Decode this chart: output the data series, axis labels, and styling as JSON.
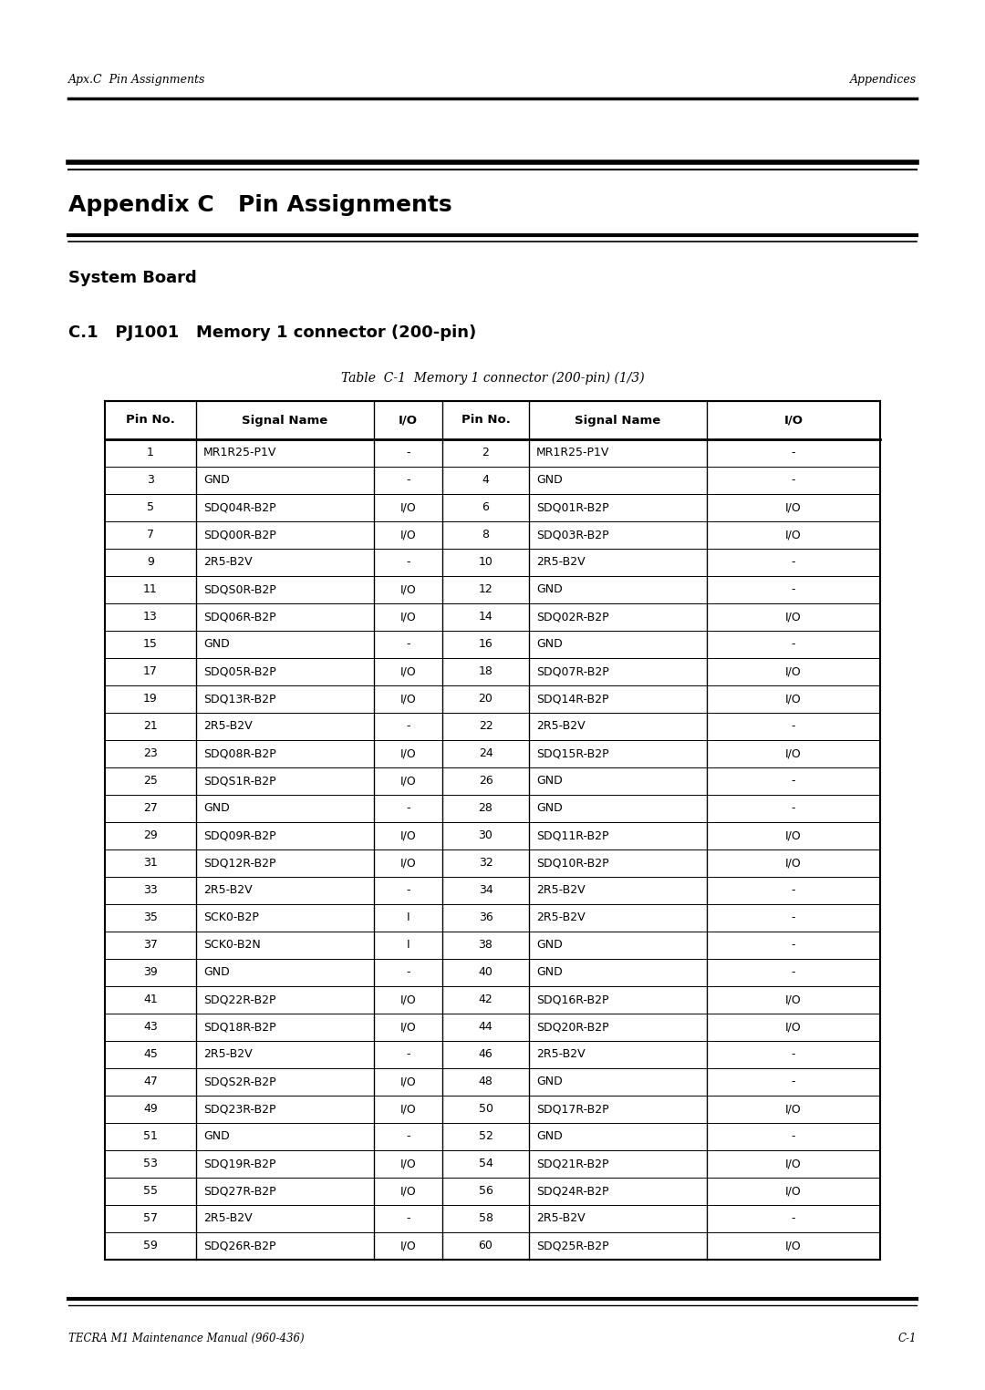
{
  "header_left": "Apx.C  Pin Assignments",
  "header_right": "Appendices",
  "title_line1": "Appendix C   Pin Assignments",
  "subtitle": "System Board",
  "section": "C.1   PJ1001   Memory 1 connector (200-pin)",
  "table_caption": "Table  C-1  Memory 1 connector (200-pin) (1/3)",
  "col_headers": [
    "Pin No.",
    "Signal Name",
    "I/O",
    "Pin No.",
    "Signal Name",
    "I/O"
  ],
  "rows": [
    [
      "1",
      "MR1R25-P1V",
      "-",
      "2",
      "MR1R25-P1V",
      "-"
    ],
    [
      "3",
      "GND",
      "-",
      "4",
      "GND",
      "-"
    ],
    [
      "5",
      "SDQ04R-B2P",
      "I/O",
      "6",
      "SDQ01R-B2P",
      "I/O"
    ],
    [
      "7",
      "SDQ00R-B2P",
      "I/O",
      "8",
      "SDQ03R-B2P",
      "I/O"
    ],
    [
      "9",
      "2R5-B2V",
      "-",
      "10",
      "2R5-B2V",
      "-"
    ],
    [
      "11",
      "SDQS0R-B2P",
      "I/O",
      "12",
      "GND",
      "-"
    ],
    [
      "13",
      "SDQ06R-B2P",
      "I/O",
      "14",
      "SDQ02R-B2P",
      "I/O"
    ],
    [
      "15",
      "GND",
      "-",
      "16",
      "GND",
      "-"
    ],
    [
      "17",
      "SDQ05R-B2P",
      "I/O",
      "18",
      "SDQ07R-B2P",
      "I/O"
    ],
    [
      "19",
      "SDQ13R-B2P",
      "I/O",
      "20",
      "SDQ14R-B2P",
      "I/O"
    ],
    [
      "21",
      "2R5-B2V",
      "-",
      "22",
      "2R5-B2V",
      "-"
    ],
    [
      "23",
      "SDQ08R-B2P",
      "I/O",
      "24",
      "SDQ15R-B2P",
      "I/O"
    ],
    [
      "25",
      "SDQS1R-B2P",
      "I/O",
      "26",
      "GND",
      "-"
    ],
    [
      "27",
      "GND",
      "-",
      "28",
      "GND",
      "-"
    ],
    [
      "29",
      "SDQ09R-B2P",
      "I/O",
      "30",
      "SDQ11R-B2P",
      "I/O"
    ],
    [
      "31",
      "SDQ12R-B2P",
      "I/O",
      "32",
      "SDQ10R-B2P",
      "I/O"
    ],
    [
      "33",
      "2R5-B2V",
      "-",
      "34",
      "2R5-B2V",
      "-"
    ],
    [
      "35",
      "SCK0-B2P",
      "I",
      "36",
      "2R5-B2V",
      "-"
    ],
    [
      "37",
      "SCK0-B2N",
      "I",
      "38",
      "GND",
      "-"
    ],
    [
      "39",
      "GND",
      "-",
      "40",
      "GND",
      "-"
    ],
    [
      "41",
      "SDQ22R-B2P",
      "I/O",
      "42",
      "SDQ16R-B2P",
      "I/O"
    ],
    [
      "43",
      "SDQ18R-B2P",
      "I/O",
      "44",
      "SDQ20R-B2P",
      "I/O"
    ],
    [
      "45",
      "2R5-B2V",
      "-",
      "46",
      "2R5-B2V",
      "-"
    ],
    [
      "47",
      "SDQS2R-B2P",
      "I/O",
      "48",
      "GND",
      "-"
    ],
    [
      "49",
      "SDQ23R-B2P",
      "I/O",
      "50",
      "SDQ17R-B2P",
      "I/O"
    ],
    [
      "51",
      "GND",
      "-",
      "52",
      "GND",
      "-"
    ],
    [
      "53",
      "SDQ19R-B2P",
      "I/O",
      "54",
      "SDQ21R-B2P",
      "I/O"
    ],
    [
      "55",
      "SDQ27R-B2P",
      "I/O",
      "56",
      "SDQ24R-B2P",
      "I/O"
    ],
    [
      "57",
      "2R5-B2V",
      "-",
      "58",
      "2R5-B2V",
      "-"
    ],
    [
      "59",
      "SDQ26R-B2P",
      "I/O",
      "60",
      "SDQ25R-B2P",
      "I/O"
    ]
  ],
  "footer_left": "TECRA M1 Maintenance Manual (960-436)",
  "footer_right": "C-1",
  "bg_color": "#ffffff",
  "text_color": "#000000"
}
